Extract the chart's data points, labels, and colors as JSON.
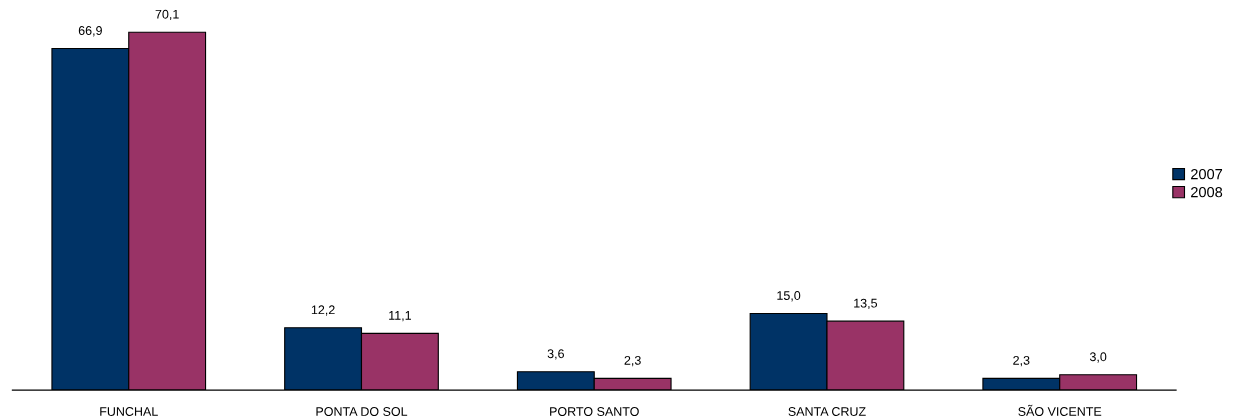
{
  "chart_data": {
    "type": "bar",
    "categories": [
      "FUNCHAL",
      "PONTA DO SOL",
      "PORTO SANTO",
      "SANTA CRUZ",
      "SÃO VICENTE"
    ],
    "series": [
      {
        "name": "2007",
        "color": "#003366",
        "values": [
          66.9,
          12.2,
          3.6,
          15.0,
          2.3
        ],
        "value_labels": [
          "66,9",
          "12,2",
          "3,6",
          "15,0",
          "2,3"
        ]
      },
      {
        "name": "2008",
        "color": "#993366",
        "values": [
          70.1,
          11.1,
          2.3,
          13.5,
          3.0
        ],
        "value_labels": [
          "70,1",
          "11,1",
          "2,3",
          "13,5",
          "3,0"
        ]
      }
    ],
    "legend": "right",
    "grid": false
  }
}
